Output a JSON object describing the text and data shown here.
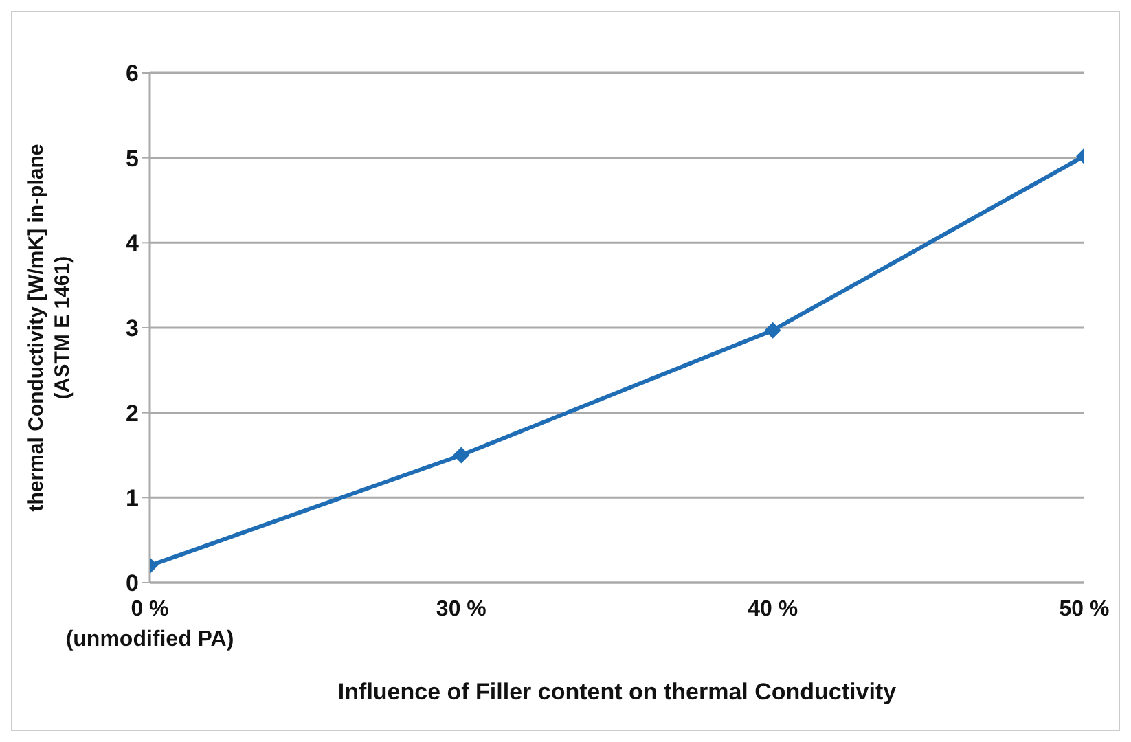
{
  "chart_data": {
    "type": "line",
    "xlabel": "Influence of Filler content on thermal Conductivity",
    "ylabel": "thermal Conductivity [W/mK] in-plane\n(ASTM E 1461)",
    "categories": [
      "0 %\n(unmodified PA)",
      "30 %",
      "40 %",
      "50 %"
    ],
    "series": [
      {
        "color": "#1f6db5",
        "values": [
          0.2,
          1.5,
          2.97,
          5.02
        ]
      }
    ],
    "ylim": [
      0,
      6
    ],
    "yticks": [
      0,
      1,
      2,
      3,
      4,
      5,
      6
    ],
    "grid": "y",
    "legend": false,
    "marker": "diamond",
    "line_style": "solid"
  }
}
